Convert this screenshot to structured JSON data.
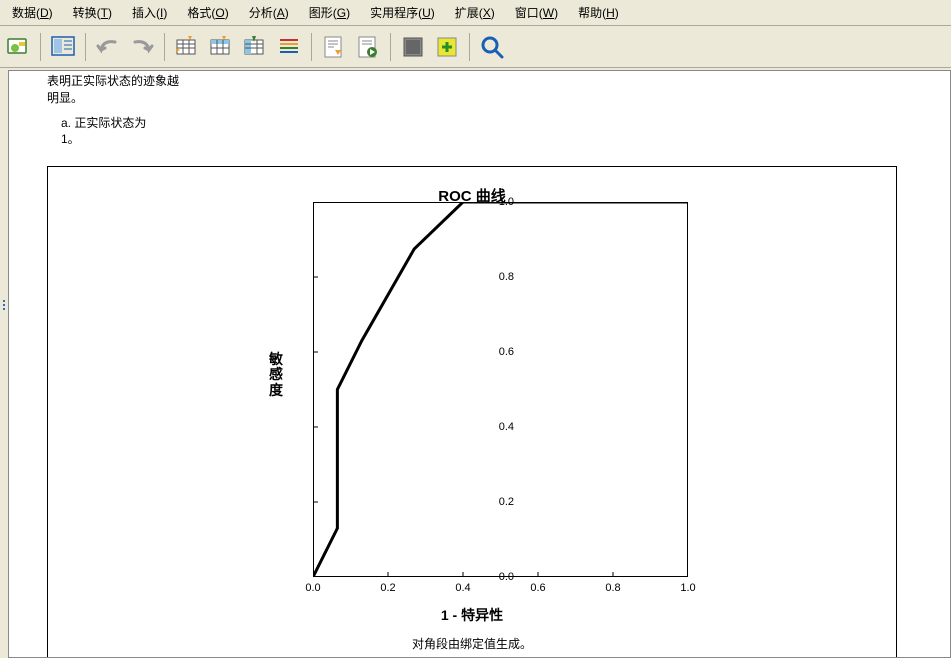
{
  "menu": {
    "items": [
      {
        "label": "数据",
        "key": "D"
      },
      {
        "label": "转换",
        "key": "T"
      },
      {
        "label": "插入",
        "key": "I"
      },
      {
        "label": "格式",
        "key": "O"
      },
      {
        "label": "分析",
        "key": "A"
      },
      {
        "label": "图形",
        "key": "G"
      },
      {
        "label": "实用程序",
        "key": "U"
      },
      {
        "label": "扩展",
        "key": "X"
      },
      {
        "label": "窗口",
        "key": "W"
      },
      {
        "label": "帮助",
        "key": "H"
      }
    ]
  },
  "note": {
    "line1": "表明正实际状态的迹象越",
    "line2": "明显。",
    "item_a": "a. 正实际状态为",
    "item_a2": "1。"
  },
  "chart": {
    "type": "line",
    "title": "ROC 曲线",
    "y_label": "敏感度",
    "x_label": "1 - 特异性",
    "footnote": "对角段由绑定值生成。",
    "xlim": [
      0.0,
      1.0
    ],
    "ylim": [
      0.0,
      1.0
    ],
    "x_ticks": [
      0.0,
      0.2,
      0.4,
      0.6,
      0.8,
      1.0
    ],
    "y_ticks": [
      0.0,
      0.2,
      0.4,
      0.6,
      0.8,
      1.0
    ],
    "line_color": "#000000",
    "line_width": 3,
    "frame_color": "#000000",
    "grid_color": "#cccccc",
    "background_color": "#ffffff",
    "tick_fontsize": 11,
    "title_fontsize": 15,
    "label_fontsize": 14,
    "points": [
      {
        "x": 0.0,
        "y": 0.0
      },
      {
        "x": 0.065,
        "y": 0.13
      },
      {
        "x": 0.065,
        "y": 0.5
      },
      {
        "x": 0.13,
        "y": 0.63
      },
      {
        "x": 0.27,
        "y": 0.875
      },
      {
        "x": 0.4,
        "y": 1.0
      },
      {
        "x": 1.0,
        "y": 1.0
      }
    ]
  }
}
